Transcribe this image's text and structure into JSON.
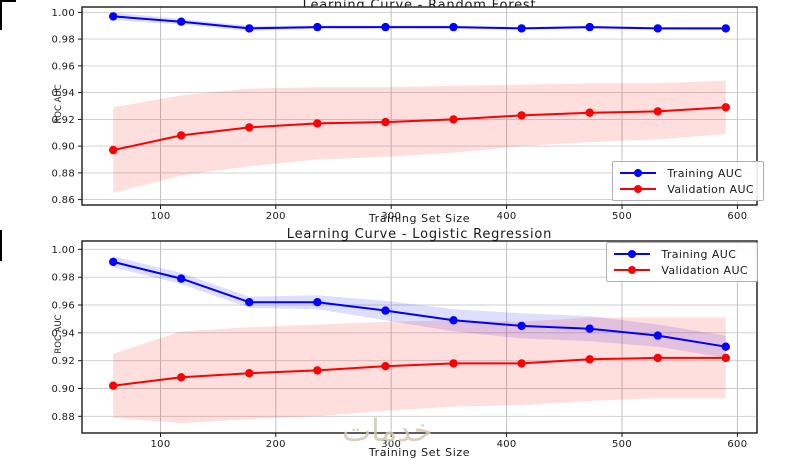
{
  "watermark": {
    "text": "خدمات"
  },
  "chart_data": [
    {
      "type": "line",
      "title": "Learning Curve - Random Forest",
      "xlabel": "Training Set Size",
      "ylabel": "ROC AUC",
      "x": [
        59,
        118,
        177,
        236,
        295,
        354,
        413,
        472,
        531,
        590
      ],
      "series": [
        {
          "name": "Training AUC",
          "color": "#0000ff",
          "values": [
            0.997,
            0.993,
            0.988,
            0.989,
            0.989,
            0.989,
            0.988,
            0.989,
            0.988,
            0.988
          ],
          "std": [
            0.003,
            0.002,
            0.002,
            0.001,
            0.001,
            0.001,
            0.001,
            0.001,
            0.001,
            0.001
          ]
        },
        {
          "name": "Validation AUC",
          "color": "#ff0000",
          "values": [
            0.897,
            0.908,
            0.914,
            0.917,
            0.918,
            0.92,
            0.923,
            0.925,
            0.926,
            0.929
          ],
          "std": [
            0.032,
            0.03,
            0.029,
            0.027,
            0.026,
            0.025,
            0.023,
            0.022,
            0.021,
            0.02
          ]
        }
      ],
      "xlim": [
        32,
        617
      ],
      "ylim": [
        0.856,
        1.004
      ],
      "xticks": [
        100,
        200,
        300,
        400,
        500,
        600
      ],
      "yticks": [
        0.86,
        0.88,
        0.9,
        0.92,
        0.94,
        0.96,
        0.98,
        1.0
      ],
      "grid": true,
      "legend_position": "lower right"
    },
    {
      "type": "line",
      "title": "Learning Curve - Logistic Regression",
      "xlabel": "Training Set Size",
      "ylabel": "ROC AUC",
      "x": [
        59,
        118,
        177,
        236,
        295,
        354,
        413,
        472,
        531,
        590
      ],
      "series": [
        {
          "name": "Training AUC",
          "color": "#0000ff",
          "values": [
            0.991,
            0.979,
            0.962,
            0.962,
            0.956,
            0.949,
            0.945,
            0.943,
            0.938,
            0.93
          ],
          "std": [
            0.004,
            0.004,
            0.004,
            0.005,
            0.007,
            0.008,
            0.009,
            0.009,
            0.008,
            0.008
          ]
        },
        {
          "name": "Validation AUC",
          "color": "#ff0000",
          "values": [
            0.902,
            0.908,
            0.911,
            0.913,
            0.916,
            0.918,
            0.918,
            0.921,
            0.922,
            0.922
          ],
          "std": [
            0.023,
            0.033,
            0.033,
            0.033,
            0.032,
            0.031,
            0.03,
            0.03,
            0.029,
            0.029
          ]
        }
      ],
      "xlim": [
        32,
        617
      ],
      "ylim": [
        0.868,
        1.006
      ],
      "xticks": [
        100,
        200,
        300,
        400,
        500,
        600
      ],
      "yticks": [
        0.88,
        0.9,
        0.92,
        0.94,
        0.96,
        0.98,
        1.0
      ],
      "grid": true,
      "legend_position": "upper right"
    }
  ]
}
